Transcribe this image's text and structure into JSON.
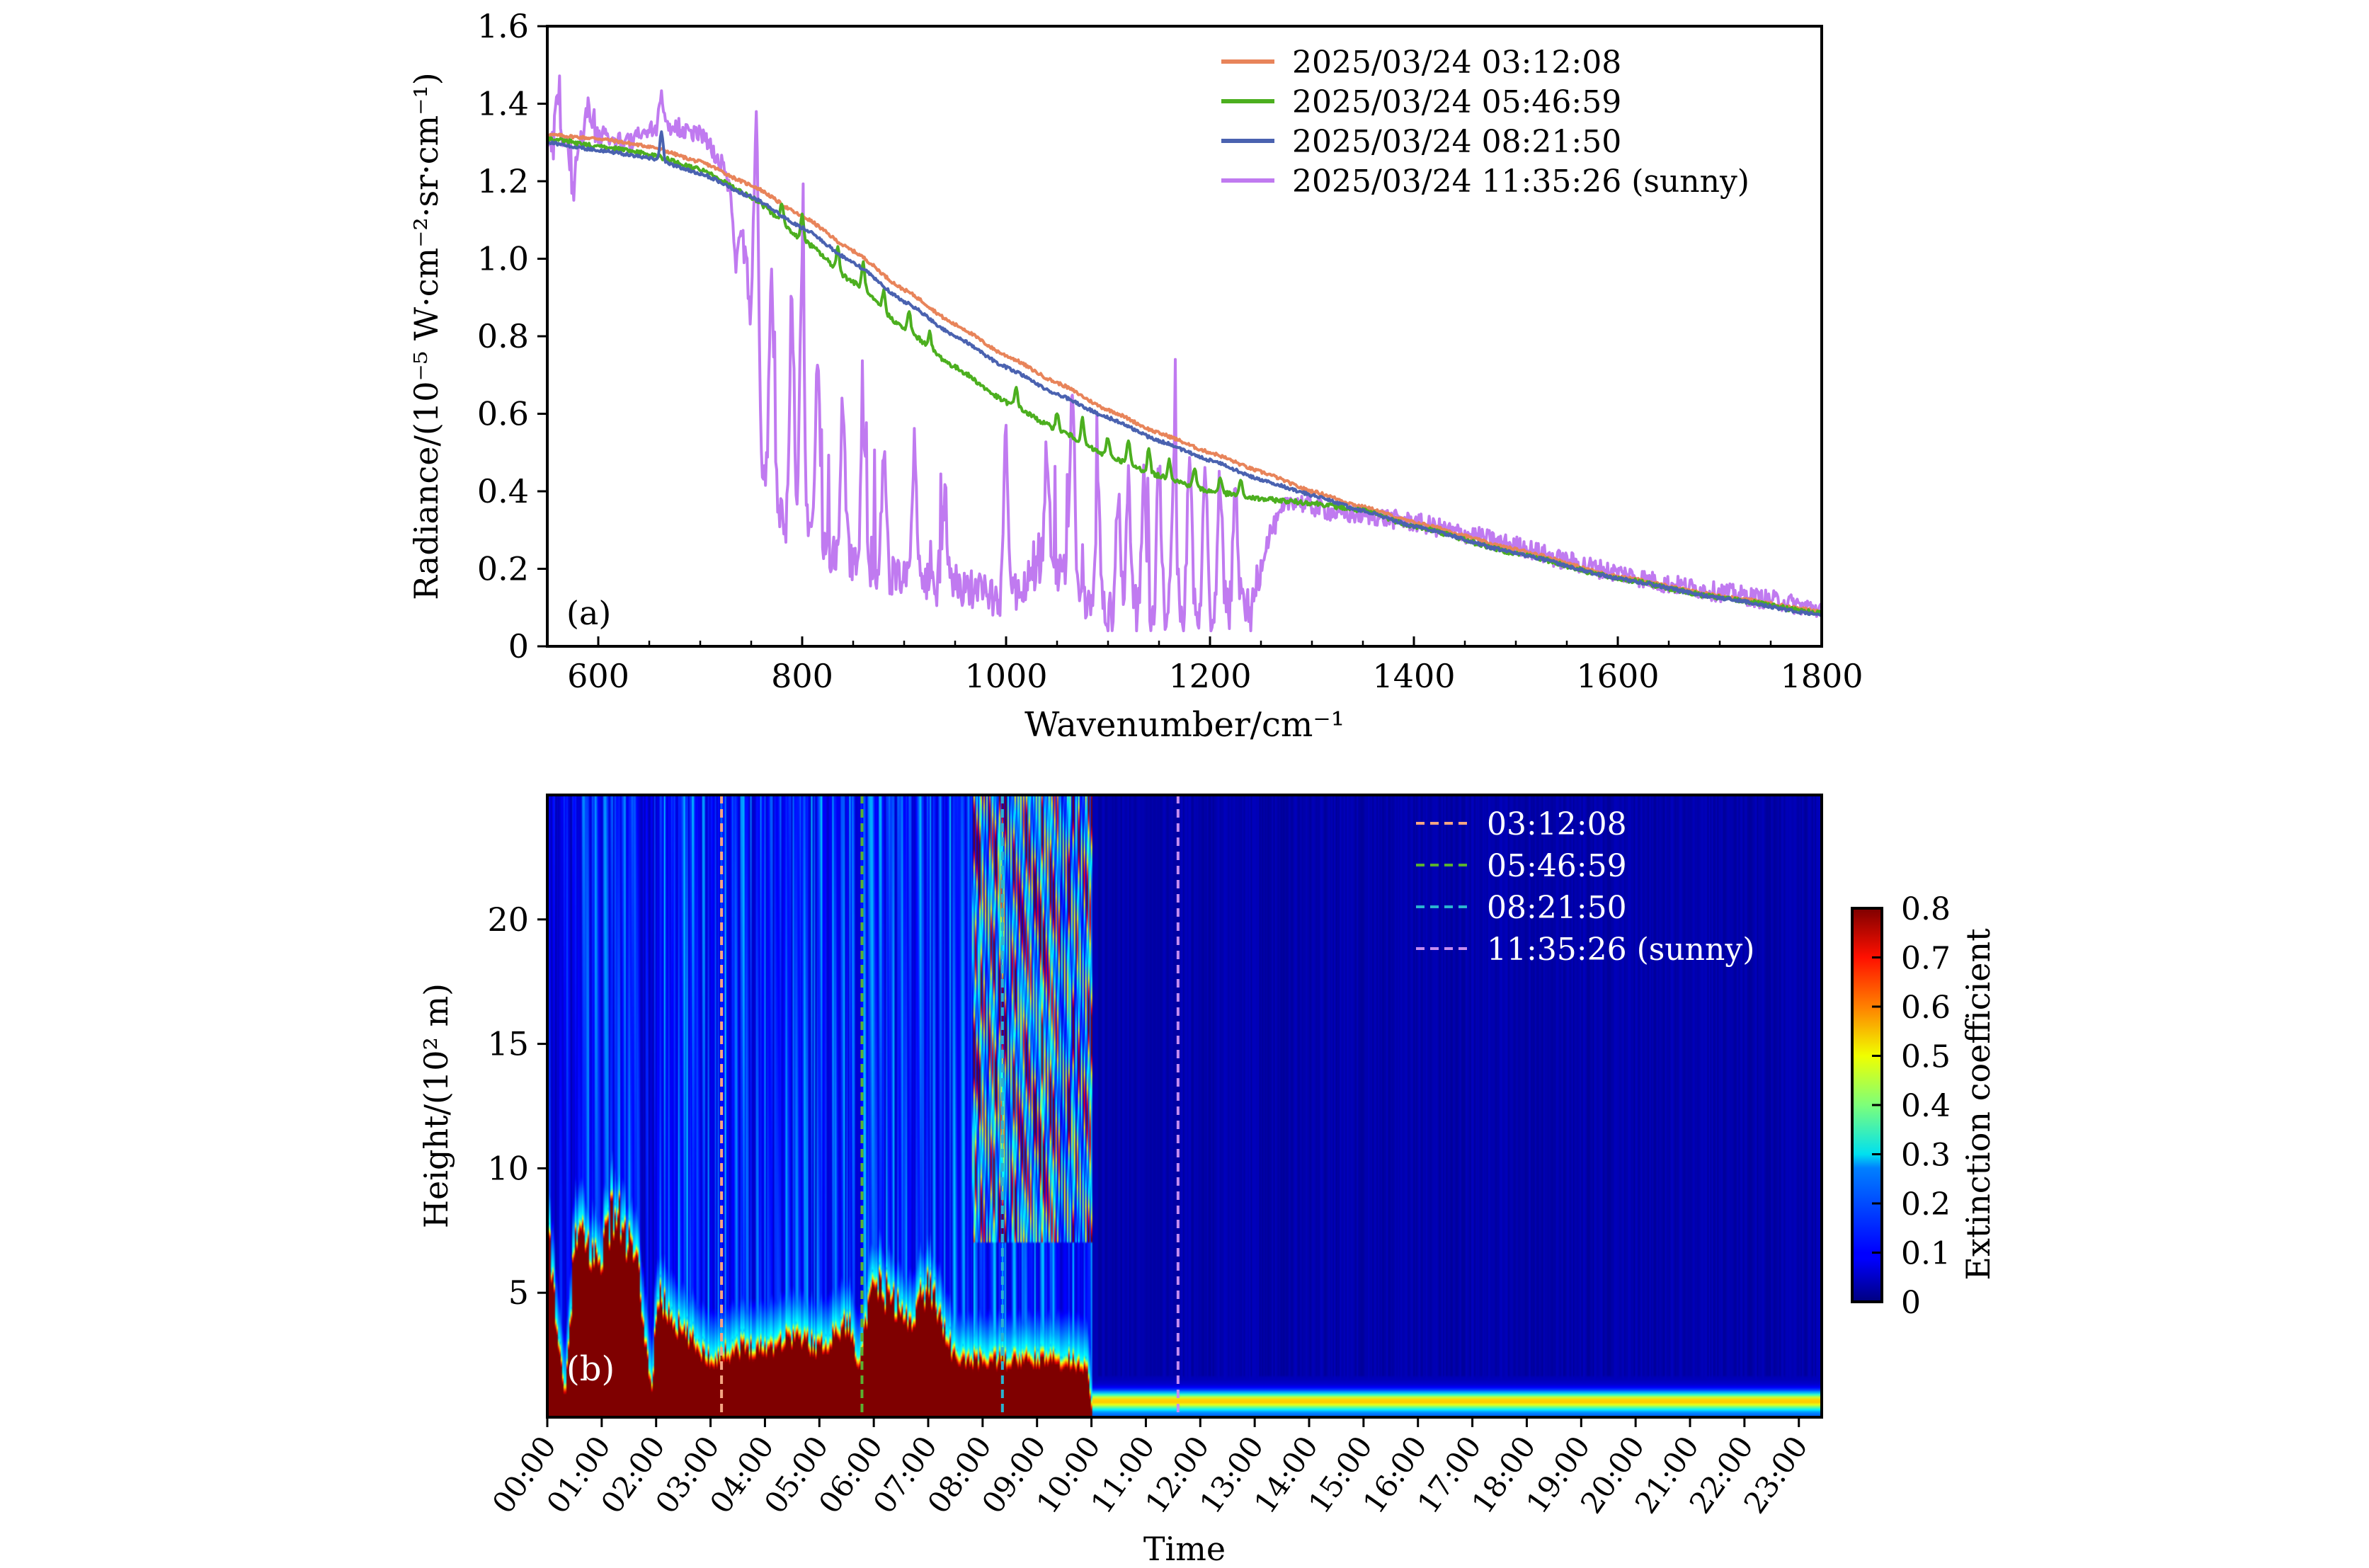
{
  "chart_data": [
    {
      "type": "line",
      "panel_label": "(a)",
      "xlabel": "Wavenumber/cm⁻¹",
      "ylabel": "Radiance/(10⁻⁵ W·cm⁻²·sr·cm⁻¹)",
      "xlim": [
        550,
        1800
      ],
      "ylim": [
        0,
        1.6
      ],
      "xticks": [
        600,
        800,
        1000,
        1200,
        1400,
        1600,
        1800
      ],
      "xtick_labels": [
        "600",
        "800",
        "1000",
        "1200",
        "1400",
        "1600",
        "1800"
      ],
      "yticks": [
        0,
        0.2,
        0.4,
        0.6,
        0.8,
        1.0,
        1.2,
        1.4,
        1.6
      ],
      "ytick_labels": [
        "0",
        "0.2",
        "0.4",
        "0.6",
        "0.8",
        "1.0",
        "1.2",
        "1.4",
        "1.6"
      ],
      "grid": false,
      "legend_position": "top-right",
      "series": [
        {
          "name": "2025/03/24 03:12:08",
          "color": "#e8845a",
          "x": [
            550,
            600,
            650,
            700,
            750,
            800,
            850,
            900,
            950,
            1000,
            1050,
            1100,
            1150,
            1200,
            1250,
            1300,
            1350,
            1400,
            1500,
            1600,
            1700,
            1800
          ],
          "y": [
            1.32,
            1.31,
            1.29,
            1.25,
            1.19,
            1.11,
            1.02,
            0.92,
            0.83,
            0.75,
            0.68,
            0.61,
            0.55,
            0.5,
            0.45,
            0.4,
            0.36,
            0.32,
            0.25,
            0.18,
            0.13,
            0.09
          ],
          "noise": 0.004,
          "spikes": []
        },
        {
          "name": "2025/03/24 05:46:59",
          "color": "#4caf1f",
          "x": [
            550,
            600,
            650,
            700,
            750,
            800,
            850,
            900,
            950,
            1000,
            1050,
            1100,
            1150,
            1200,
            1250,
            1300,
            1350,
            1400,
            1500,
            1600,
            1700,
            1800
          ],
          "y": [
            1.31,
            1.29,
            1.27,
            1.23,
            1.16,
            1.05,
            0.94,
            0.82,
            0.72,
            0.63,
            0.56,
            0.49,
            0.44,
            0.4,
            0.38,
            0.37,
            0.35,
            0.31,
            0.24,
            0.175,
            0.125,
            0.085
          ],
          "noise": 0.006,
          "spikes": [
            [
              780,
              0.05
            ],
            [
              800,
              0.06
            ],
            [
              835,
              0.06
            ],
            [
              860,
              0.07
            ],
            [
              880,
              0.05
            ],
            [
              905,
              0.05
            ],
            [
              925,
              0.04
            ],
            [
              1010,
              0.05
            ],
            [
              1050,
              0.04
            ],
            [
              1075,
              0.06
            ],
            [
              1100,
              0.05
            ],
            [
              1120,
              0.06
            ],
            [
              1140,
              0.06
            ],
            [
              1160,
              0.05
            ],
            [
              1185,
              0.05
            ],
            [
              1210,
              0.04
            ],
            [
              1230,
              0.04
            ]
          ]
        },
        {
          "name": "2025/03/24 08:21:50",
          "color": "#4a62b0",
          "x": [
            550,
            600,
            650,
            700,
            750,
            800,
            850,
            900,
            950,
            1000,
            1050,
            1100,
            1150,
            1200,
            1250,
            1300,
            1350,
            1400,
            1500,
            1600,
            1700,
            1800
          ],
          "y": [
            1.3,
            1.28,
            1.26,
            1.22,
            1.16,
            1.08,
            0.99,
            0.89,
            0.8,
            0.72,
            0.65,
            0.59,
            0.53,
            0.48,
            0.43,
            0.39,
            0.35,
            0.31,
            0.24,
            0.175,
            0.125,
            0.08
          ],
          "noise": 0.004,
          "spikes": [
            [
              662,
              0.08
            ]
          ]
        },
        {
          "name": "2025/03/24 11:35:26 (sunny)",
          "color": "#c07af0",
          "x": [
            550,
            570,
            600,
            630,
            650,
            680,
            700,
            720,
            740,
            750,
            760,
            780,
            800,
            850,
            900,
            950,
            1000,
            1020,
            1040,
            1060,
            1080,
            1100,
            1150,
            1200,
            1240,
            1260,
            1280,
            1300,
            1330,
            1350,
            1400,
            1450,
            1500,
            1550,
            1600,
            1650,
            1700,
            1750,
            1800
          ],
          "y": [
            1.3,
            1.3,
            1.32,
            1.3,
            1.33,
            1.34,
            1.32,
            1.25,
            1.1,
            0.85,
            0.45,
            0.33,
            0.28,
            0.22,
            0.17,
            0.15,
            0.13,
            0.16,
            0.22,
            0.18,
            0.1,
            0.09,
            0.08,
            0.08,
            0.12,
            0.3,
            0.38,
            0.36,
            0.34,
            0.34,
            0.32,
            0.29,
            0.26,
            0.22,
            0.19,
            0.16,
            0.14,
            0.12,
            0.095
          ],
          "noise": 0.025,
          "spikes": [
            [
              560,
              0.12
            ],
            [
              575,
              -0.15
            ],
            [
              590,
              0.08
            ],
            [
              662,
              0.1
            ],
            [
              735,
              -0.15
            ],
            [
              755,
              0.7
            ],
            [
              770,
              0.6
            ],
            [
              790,
              0.55
            ],
            [
              800,
              0.7
            ],
            [
              815,
              0.5
            ],
            [
              840,
              0.4
            ],
            [
              860,
              0.35
            ],
            [
              880,
              0.3
            ],
            [
              910,
              0.35
            ],
            [
              940,
              0.25
            ],
            [
              1000,
              0.4
            ],
            [
              1040,
              0.3
            ],
            [
              1065,
              0.48
            ],
            [
              1090,
              0.3
            ],
            [
              1110,
              0.3
            ],
            [
              1120,
              0.35
            ],
            [
              1135,
              0.35
            ],
            [
              1150,
              0.38
            ],
            [
              1165,
              0.4
            ],
            [
              1180,
              0.4
            ],
            [
              1195,
              0.38
            ],
            [
              1210,
              0.35
            ],
            [
              1225,
              0.32
            ],
            [
              1240,
              -0.06
            ]
          ]
        }
      ]
    },
    {
      "type": "heatmap",
      "panel_label": "(b)",
      "xlabel": "Time",
      "ylabel": "Height/(10² m)",
      "colorbar_label": "Extinction coefficient",
      "colormap": "jet",
      "value_range": [
        0,
        0.8
      ],
      "colorbar_ticks": [
        "0",
        "0.1",
        "0.2",
        "0.3",
        "0.4",
        "0.5",
        "0.6",
        "0.7",
        "0.8"
      ],
      "xlim_hours": [
        0,
        23.42
      ],
      "ylim": [
        0,
        25
      ],
      "yticks": [
        5,
        10,
        15,
        20
      ],
      "ytick_labels": [
        "5",
        "10",
        "15",
        "20"
      ],
      "xtick_labels": [
        "00:00",
        "01:00",
        "02:00",
        "03:00",
        "04:00",
        "05:00",
        "06:00",
        "07:00",
        "08:00",
        "09:00",
        "10:00",
        "11:00",
        "12:00",
        "13:00",
        "14:00",
        "15:00",
        "16:00",
        "17:00",
        "18:00",
        "19:00",
        "20:00",
        "21:00",
        "22:00",
        "23:00"
      ],
      "legend_position": "top-right",
      "markers": [
        {
          "label": "03:12:08",
          "hour": 3.202,
          "color": "#f4a582"
        },
        {
          "label": "05:46:59",
          "hour": 5.783,
          "color": "#5ab030"
        },
        {
          "label": "08:21:50",
          "hour": 8.364,
          "color": "#2ab3d0"
        },
        {
          "label": "11:35:26 (sunny)",
          "hour": 11.591,
          "color": "#c48cf0"
        }
      ],
      "dense_layer_top_by_hour": {
        "hours": [
          0,
          0.3,
          0.5,
          0.9,
          1.2,
          1.6,
          1.9,
          2.0,
          2.5,
          3.0,
          3.5,
          4.0,
          4.5,
          5.0,
          5.5,
          5.7,
          6.0,
          6.3,
          6.6,
          7.0,
          7.5,
          8.0,
          8.5,
          9.0,
          9.5,
          9.9,
          10.0,
          23.42
        ],
        "layer_top": [
          6.5,
          0.5,
          7.0,
          6.0,
          8.0,
          6.0,
          0.8,
          4.5,
          3.0,
          2.0,
          2.5,
          2.5,
          3.0,
          2.5,
          3.5,
          2.0,
          5.0,
          4.5,
          3.5,
          5.0,
          2.0,
          2.0,
          2.0,
          2.0,
          2.0,
          1.8,
          0,
          0
        ]
      },
      "clear_sky_surface_band": {
        "from_hour": 10.0,
        "height": 0.7,
        "value": 0.45
      },
      "cirrus_region": {
        "from_hour": 7.8,
        "to_hour": 10.0,
        "height_range": [
          8,
          25
        ],
        "max_value": 0.7
      }
    }
  ]
}
